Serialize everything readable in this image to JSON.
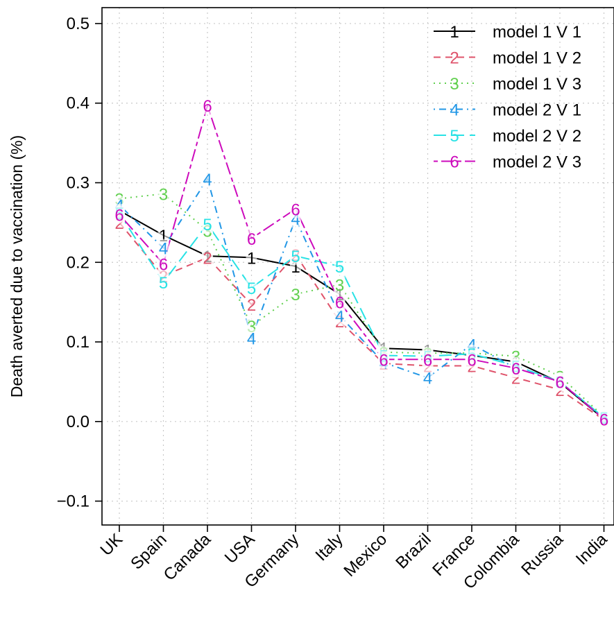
{
  "chart_data": {
    "type": "line",
    "title": "",
    "xlabel": "",
    "ylabel": "Death averted due to vaccination (%)",
    "ylim": [
      -0.13,
      0.52
    ],
    "yticks": [
      -0.1,
      0.0,
      0.1,
      0.2,
      0.3,
      0.4,
      0.5
    ],
    "ytick_labels": [
      "−0.1",
      "0.0",
      "0.1",
      "0.2",
      "0.3",
      "0.4",
      "0.5"
    ],
    "categories": [
      "UK",
      "Spain",
      "Canada",
      "USA",
      "Germany",
      "Italy",
      "Mexico",
      "Brazil",
      "France",
      "Colombia",
      "Russia",
      "India"
    ],
    "grid": true,
    "legend_position": "top-right",
    "series": [
      {
        "name": "model 1 V 1",
        "marker": "1",
        "color": "#000000",
        "dash": "solid",
        "values": [
          0.265,
          0.234,
          0.208,
          0.206,
          0.195,
          0.16,
          0.092,
          0.09,
          0.083,
          0.075,
          0.049,
          0.003
        ]
      },
      {
        "name": "model 1 V 2",
        "marker": "2",
        "color": "#DF536B",
        "dash": "dashed",
        "values": [
          0.25,
          0.183,
          0.206,
          0.147,
          0.21,
          0.126,
          0.073,
          0.07,
          0.07,
          0.055,
          0.04,
          0.002
        ]
      },
      {
        "name": "model 1 V 3",
        "marker": "3",
        "color": "#61D04F",
        "dash": "dotted",
        "values": [
          0.28,
          0.286,
          0.24,
          0.12,
          0.16,
          0.172,
          0.087,
          0.086,
          0.086,
          0.082,
          0.057,
          0.006
        ]
      },
      {
        "name": "model 2 V 1",
        "marker": "4",
        "color": "#2297E6",
        "dash": "dotdash",
        "values": [
          0.272,
          0.218,
          0.305,
          0.105,
          0.255,
          0.133,
          0.074,
          0.055,
          0.097,
          0.067,
          0.05,
          0.004
        ]
      },
      {
        "name": "model 2 V 2",
        "marker": "5",
        "color": "#28E2E5",
        "dash": "longdash",
        "values": [
          0.262,
          0.175,
          0.248,
          0.168,
          0.208,
          0.195,
          0.083,
          0.082,
          0.085,
          0.07,
          0.05,
          0.005
        ]
      },
      {
        "name": "model 2 V 3",
        "marker": "6",
        "color": "#CD0BBC",
        "dash": "twodash",
        "values": [
          0.26,
          0.198,
          0.397,
          0.23,
          0.267,
          0.15,
          0.078,
          0.078,
          0.078,
          0.067,
          0.05,
          0.003
        ]
      }
    ]
  }
}
